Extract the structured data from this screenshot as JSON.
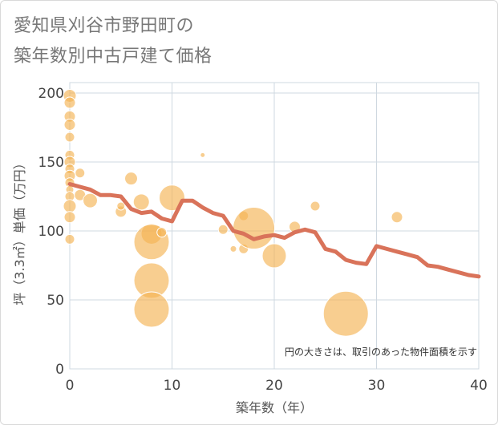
{
  "chart_data": {
    "type": "scatter",
    "title": [
      "愛知県刈谷市野田町の",
      "築年数別中古戸建て価格"
    ],
    "xlabel": "築年数（年）",
    "ylabel": "坪（3.3㎡）単価（万円）",
    "xlim": [
      0,
      40
    ],
    "ylim": [
      0,
      200
    ],
    "xticks": [
      0,
      10,
      20,
      30,
      40
    ],
    "yticks": [
      0,
      50,
      100,
      150,
      200
    ],
    "note": "円の大きさは、取引のあった物件面積を示す",
    "colors": {
      "bubble": "#f5b455",
      "line": "#d9735a",
      "grid": "#cfd8e0",
      "plot_bg": "#ffffff"
    },
    "bubbles": [
      {
        "x": 0,
        "y": 198,
        "s": 8
      },
      {
        "x": 0,
        "y": 193,
        "s": 7
      },
      {
        "x": 0,
        "y": 183,
        "s": 7
      },
      {
        "x": 0,
        "y": 177,
        "s": 7
      },
      {
        "x": 0,
        "y": 168,
        "s": 6
      },
      {
        "x": 0,
        "y": 155,
        "s": 6
      },
      {
        "x": 0,
        "y": 150,
        "s": 7
      },
      {
        "x": 0,
        "y": 145,
        "s": 6
      },
      {
        "x": 0,
        "y": 140,
        "s": 7
      },
      {
        "x": 0,
        "y": 135,
        "s": 6
      },
      {
        "x": 0,
        "y": 130,
        "s": 5
      },
      {
        "x": 0,
        "y": 125,
        "s": 6
      },
      {
        "x": 0,
        "y": 118,
        "s": 8
      },
      {
        "x": 0,
        "y": 110,
        "s": 7
      },
      {
        "x": 0,
        "y": 94,
        "s": 6
      },
      {
        "x": 1,
        "y": 142,
        "s": 6
      },
      {
        "x": 1,
        "y": 126,
        "s": 7
      },
      {
        "x": 2,
        "y": 122,
        "s": 9
      },
      {
        "x": 5,
        "y": 114,
        "s": 7
      },
      {
        "x": 5,
        "y": 118,
        "s": 5
      },
      {
        "x": 6,
        "y": 138,
        "s": 8
      },
      {
        "x": 7,
        "y": 121,
        "s": 10
      },
      {
        "x": 8,
        "y": 98,
        "s": 13
      },
      {
        "x": 8,
        "y": 92,
        "s": 22
      },
      {
        "x": 8,
        "y": 64,
        "s": 22
      },
      {
        "x": 8,
        "y": 43,
        "s": 22
      },
      {
        "x": 9,
        "y": 99,
        "s": 6
      },
      {
        "x": 10,
        "y": 124,
        "s": 16
      },
      {
        "x": 13,
        "y": 155,
        "s": 3
      },
      {
        "x": 15,
        "y": 101,
        "s": 6
      },
      {
        "x": 16,
        "y": 87,
        "s": 4
      },
      {
        "x": 17,
        "y": 87,
        "s": 6
      },
      {
        "x": 17,
        "y": 111,
        "s": 6
      },
      {
        "x": 18,
        "y": 102,
        "s": 26
      },
      {
        "x": 20,
        "y": 82,
        "s": 15
      },
      {
        "x": 22,
        "y": 103,
        "s": 7
      },
      {
        "x": 24,
        "y": 118,
        "s": 6
      },
      {
        "x": 27,
        "y": 40,
        "s": 28
      },
      {
        "x": 32,
        "y": 110,
        "s": 7
      }
    ],
    "trend": {
      "x": [
        0,
        1,
        2,
        3,
        4,
        5,
        6,
        7,
        8,
        9,
        10,
        11,
        12,
        13,
        14,
        15,
        16,
        17,
        18,
        19,
        20,
        21,
        22,
        23,
        24,
        25,
        26,
        27,
        28,
        29,
        30,
        31,
        32,
        33,
        34,
        35,
        36,
        37,
        38,
        39,
        40
      ],
      "y": [
        134,
        132,
        130,
        126,
        126,
        125,
        116,
        113,
        114,
        109,
        107,
        122,
        122,
        117,
        113,
        111,
        100,
        98,
        94,
        96,
        97,
        95,
        99,
        101,
        99,
        87,
        85,
        79,
        77,
        76,
        89,
        87,
        85,
        83,
        81,
        75,
        74,
        72,
        70,
        68,
        67
      ]
    }
  }
}
